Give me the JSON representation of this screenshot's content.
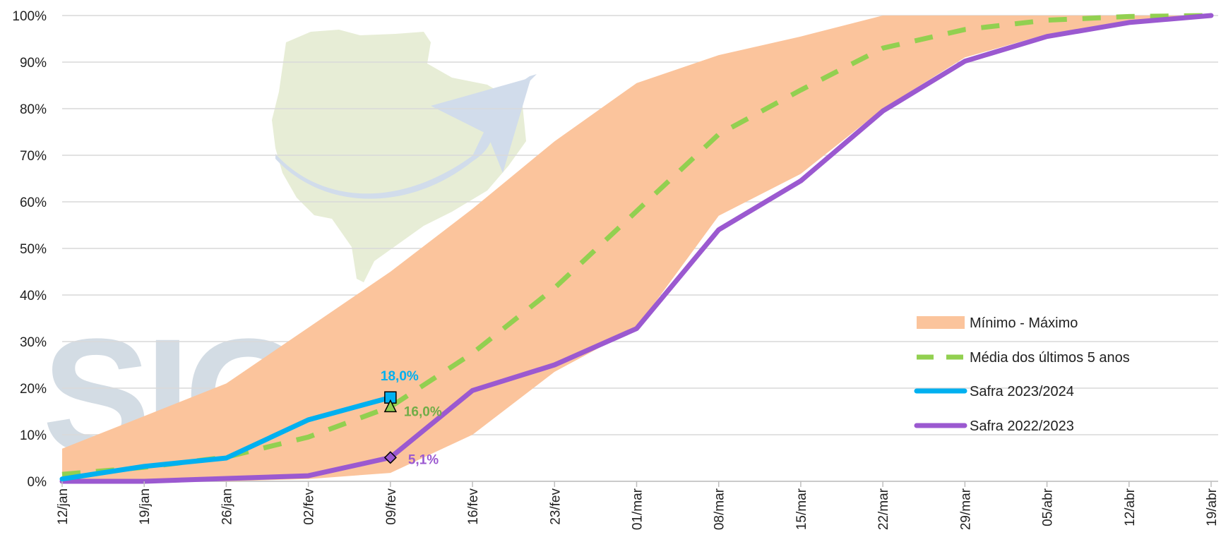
{
  "chart_data": {
    "type": "area",
    "title": "",
    "xlabel": "",
    "ylabel": "",
    "ylim": [
      0,
      100
    ],
    "y_ticks": [
      "0%",
      "10%",
      "20%",
      "30%",
      "40%",
      "50%",
      "60%",
      "70%",
      "80%",
      "90%",
      "100%"
    ],
    "categories": [
      "12/jan",
      "19/jan",
      "26/jan",
      "02/fev",
      "09/fev",
      "16/fev",
      "23/fev",
      "01/mar",
      "08/mar",
      "15/mar",
      "22/mar",
      "29/mar",
      "05/abr",
      "12/abr",
      "19/abr"
    ],
    "grid": true,
    "legend_position": "right",
    "series": [
      {
        "name": "Mínimo - Máximo",
        "kind": "band",
        "color": "#fbc49c",
        "min": [
          0,
          0,
          0,
          0.5,
          1.8,
          10,
          23.5,
          33,
          57,
          66,
          80,
          91,
          96,
          99,
          100
        ],
        "max": [
          7,
          14,
          21,
          33,
          45,
          58.5,
          73,
          85.5,
          91.5,
          95.5,
          100,
          100,
          100,
          100,
          100
        ]
      },
      {
        "name": "Média dos últimos 5 anos",
        "kind": "dashed-line",
        "color": "#92d050",
        "values": [
          1.5,
          3,
          5.2,
          9.5,
          16,
          27.5,
          41.5,
          58,
          74.5,
          84,
          93,
          97,
          99,
          99.8,
          100
        ]
      },
      {
        "name": "Safra 2023/2024",
        "kind": "line",
        "color": "#00b0f0",
        "values": [
          0.5,
          3.2,
          5,
          13.2,
          18,
          null,
          null,
          null,
          null,
          null,
          null,
          null,
          null,
          null,
          null
        ]
      },
      {
        "name": "Safra 2022/2023",
        "kind": "line",
        "color": "#9b59d0",
        "values": [
          0,
          0,
          0.6,
          1.2,
          5.1,
          19.5,
          25,
          32.8,
          54,
          64.5,
          79.5,
          90.2,
          95.5,
          98.5,
          100
        ]
      }
    ],
    "annotations": [
      {
        "series": "Safra 2023/2024",
        "category": "09/fev",
        "label": "18,0%",
        "color": "#00b0f0"
      },
      {
        "series": "Média dos últimos 5 anos",
        "category": "09/fev",
        "label": "16,0%",
        "color": "#70ad47"
      },
      {
        "series": "Safra 2022/2023",
        "category": "09/fev",
        "label": "5,1%",
        "color": "#9b59d0"
      }
    ]
  },
  "colors": {
    "grid": "#d9d9d9",
    "watermark_map": "#e3ebcf",
    "watermark_arrow": "#c9d6e8",
    "watermark_text": "#ccd6e0"
  }
}
